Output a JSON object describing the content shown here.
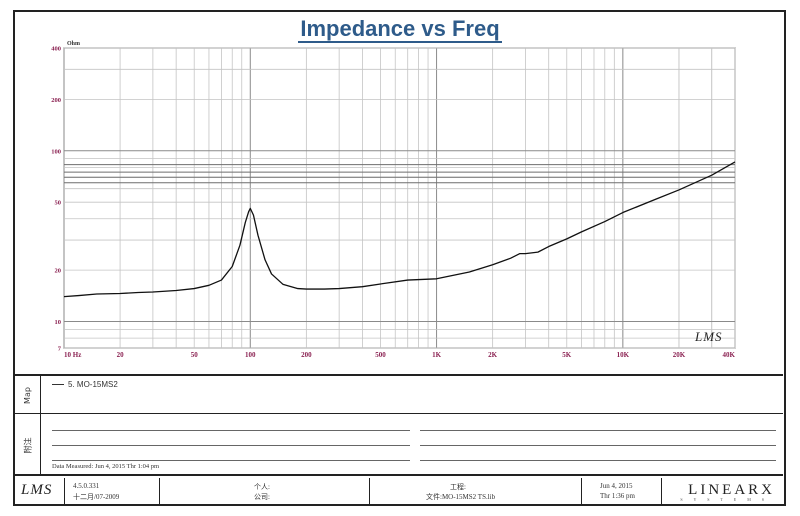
{
  "chart_data": {
    "type": "line",
    "title": "Impedance vs Freq",
    "ylabel": "Ohm",
    "x_scale": "log",
    "y_scale": "log",
    "xlim": [
      10,
      40000
    ],
    "ylim": [
      7,
      400
    ],
    "x_ticks": [
      {
        "v": 10,
        "label": "10  Hz"
      },
      {
        "v": 20,
        "label": "20"
      },
      {
        "v": 50,
        "label": "50"
      },
      {
        "v": 100,
        "label": "100"
      },
      {
        "v": 200,
        "label": "200"
      },
      {
        "v": 500,
        "label": "500"
      },
      {
        "v": 1000,
        "label": "1K"
      },
      {
        "v": 2000,
        "label": "2K"
      },
      {
        "v": 5000,
        "label": "5K"
      },
      {
        "v": 10000,
        "label": "10K"
      },
      {
        "v": 20000,
        "label": "20K"
      },
      {
        "v": 40000,
        "label": "40K"
      }
    ],
    "y_ticks": [
      {
        "v": 7,
        "label": "7"
      },
      {
        "v": 10,
        "label": "10"
      },
      {
        "v": 20,
        "label": "20"
      },
      {
        "v": 50,
        "label": "50"
      },
      {
        "v": 100,
        "label": "100"
      },
      {
        "v": 200,
        "label": "200"
      },
      {
        "v": 400,
        "label": "400"
      }
    ],
    "series": [
      {
        "name": "MO-15MS2",
        "points": [
          [
            10,
            14.0
          ],
          [
            12,
            14.2
          ],
          [
            15,
            14.5
          ],
          [
            20,
            14.6
          ],
          [
            25,
            14.8
          ],
          [
            30,
            14.9
          ],
          [
            40,
            15.2
          ],
          [
            50,
            15.6
          ],
          [
            60,
            16.3
          ],
          [
            70,
            17.5
          ],
          [
            80,
            21.0
          ],
          [
            88,
            28.0
          ],
          [
            94,
            38.0
          ],
          [
            98,
            44.0
          ],
          [
            100,
            46.0
          ],
          [
            104,
            42.0
          ],
          [
            110,
            32.0
          ],
          [
            120,
            23.0
          ],
          [
            130,
            19.0
          ],
          [
            150,
            16.5
          ],
          [
            180,
            15.6
          ],
          [
            200,
            15.5
          ],
          [
            250,
            15.5
          ],
          [
            300,
            15.6
          ],
          [
            400,
            16.0
          ],
          [
            500,
            16.6
          ],
          [
            700,
            17.5
          ],
          [
            1000,
            17.8
          ],
          [
            1500,
            19.5
          ],
          [
            2000,
            21.5
          ],
          [
            2500,
            23.5
          ],
          [
            2800,
            25.0
          ],
          [
            3000,
            25.0
          ],
          [
            3500,
            25.5
          ],
          [
            4000,
            27.5
          ],
          [
            5000,
            30.5
          ],
          [
            6000,
            33.5
          ],
          [
            8000,
            38.5
          ],
          [
            10000,
            43.5
          ],
          [
            15000,
            52.0
          ],
          [
            20000,
            59.0
          ],
          [
            30000,
            72.0
          ],
          [
            40000,
            86.0
          ]
        ]
      }
    ],
    "reference_lines_y": [
      65,
      70,
      75,
      83
    ],
    "grid": true
  },
  "watermark": "LMS",
  "legend": {
    "side_label": "Map",
    "entries": [
      {
        "index": "5",
        "name": "MO-15MS2"
      }
    ]
  },
  "notes": {
    "side_label": "附注",
    "measured": "Data Measured: Jun 4, 2015  Thr  1:04 pm"
  },
  "footer": {
    "logo": "LMS",
    "version": "4.5.0.331",
    "build_date": "十二月/07-2009",
    "person_label": "个人:",
    "company_label": "公司:",
    "project_label": "工程:",
    "file": "文件:MO-15MS2 TS.lib",
    "date": "Jun 4, 2015",
    "time": "Thr  1:36 pm",
    "brand": "LINEARX",
    "brand_sub": "S Y S T E M S"
  }
}
